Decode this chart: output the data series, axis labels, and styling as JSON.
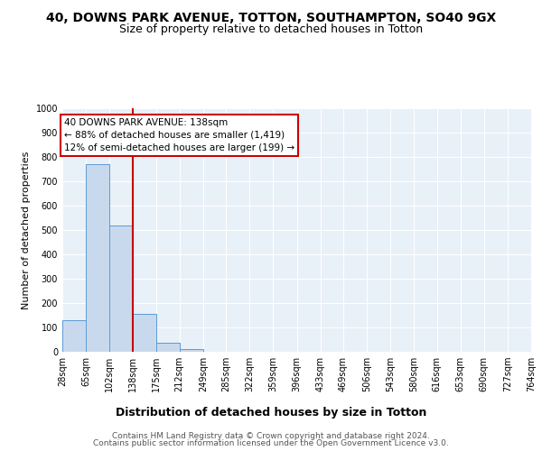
{
  "title_line1": "40, DOWNS PARK AVENUE, TOTTON, SOUTHAMPTON, SO40 9GX",
  "title_line2": "Size of property relative to detached houses in Totton",
  "xlabel": "Distribution of detached houses by size in Totton",
  "ylabel": "Number of detached properties",
  "bin_edges": [
    28,
    65,
    102,
    138,
    175,
    212,
    249,
    285,
    322,
    359,
    396,
    433,
    469,
    506,
    543,
    580,
    616,
    653,
    690,
    727,
    764
  ],
  "bin_labels": [
    "28sqm",
    "65sqm",
    "102sqm",
    "138sqm",
    "175sqm",
    "212sqm",
    "249sqm",
    "285sqm",
    "322sqm",
    "359sqm",
    "396sqm",
    "433sqm",
    "469sqm",
    "506sqm",
    "543sqm",
    "580sqm",
    "616sqm",
    "653sqm",
    "690sqm",
    "727sqm",
    "764sqm"
  ],
  "counts": [
    130,
    770,
    520,
    155,
    37,
    10,
    0,
    0,
    0,
    0,
    0,
    0,
    0,
    0,
    0,
    0,
    0,
    0,
    0,
    0
  ],
  "bar_color": "#c9d9ed",
  "bar_edge_color": "#5b9bd5",
  "property_line_x": 138,
  "property_line_color": "#cc0000",
  "annotation_line1": "40 DOWNS PARK AVENUE: 138sqm",
  "annotation_line2": "← 88% of detached houses are smaller (1,419)",
  "annotation_line3": "12% of semi-detached houses are larger (199) →",
  "annotation_box_color": "#ffffff",
  "annotation_box_edge_color": "#cc0000",
  "ylim": [
    0,
    1000
  ],
  "yticks": [
    0,
    100,
    200,
    300,
    400,
    500,
    600,
    700,
    800,
    900,
    1000
  ],
  "background_color": "#e8f0f8",
  "footer_line1": "Contains HM Land Registry data © Crown copyright and database right 2024.",
  "footer_line2": "Contains public sector information licensed under the Open Government Licence v3.0.",
  "title_fontsize": 10,
  "subtitle_fontsize": 9,
  "xlabel_fontsize": 9,
  "ylabel_fontsize": 8,
  "tick_fontsize": 7,
  "annotation_fontsize": 7.5,
  "footer_fontsize": 6.5
}
